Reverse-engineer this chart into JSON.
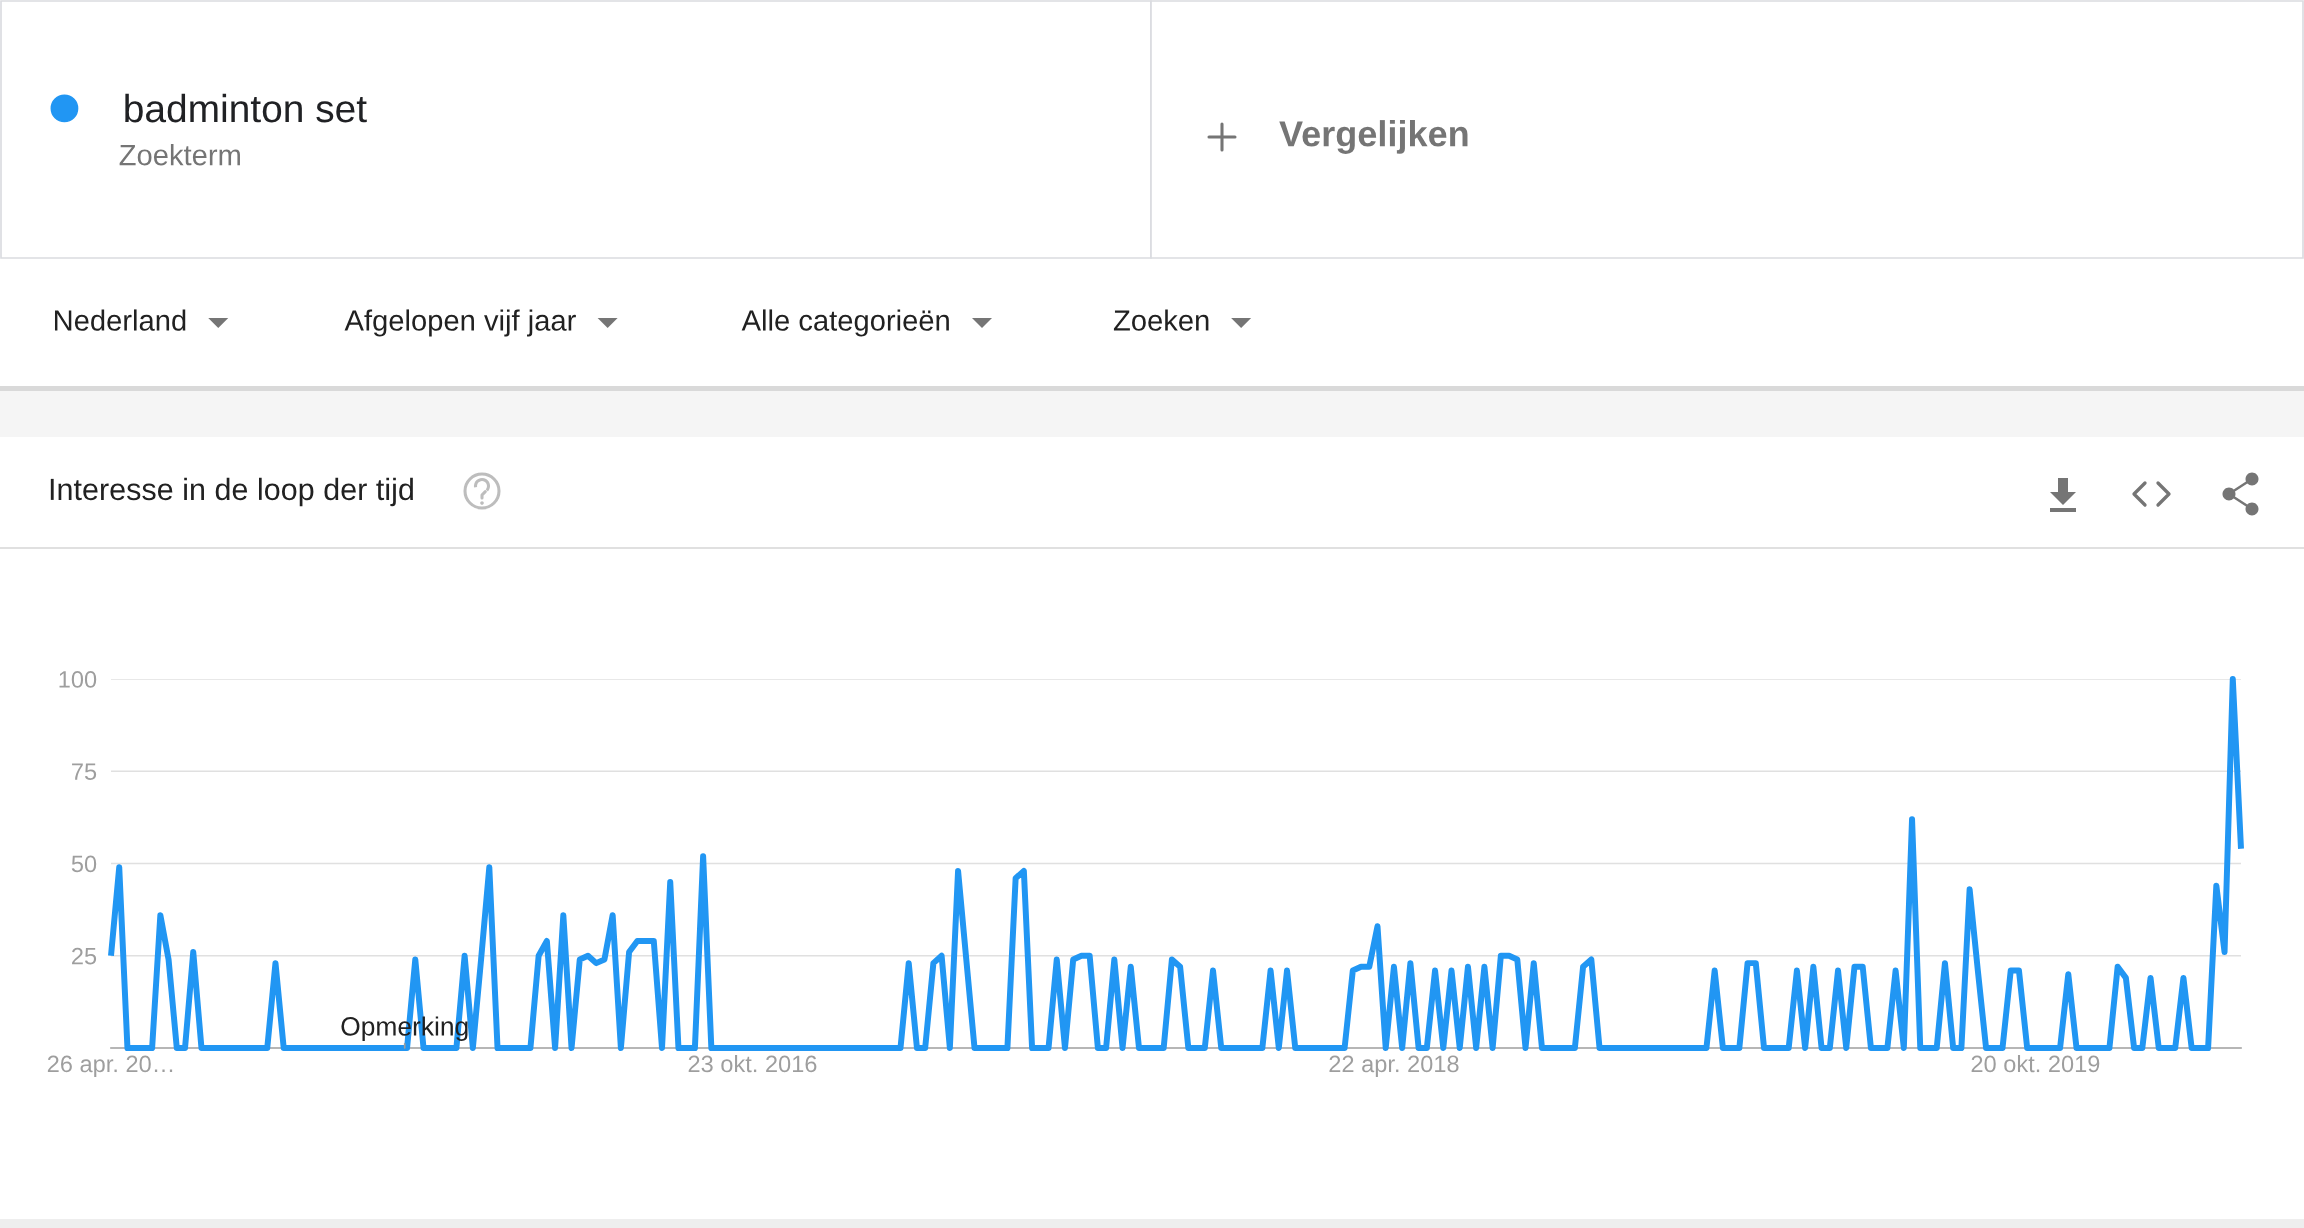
{
  "chart_data": {
    "type": "line",
    "title": "Interesse in de loop der tijd",
    "x": [
      "2015-04-26",
      "2015-05-03",
      "2015-05-10",
      "2015-05-17",
      "2015-05-24",
      "2015-05-31",
      "2015-06-07",
      "2015-06-14",
      "2015-06-21",
      "2015-06-28",
      "2015-07-05",
      "2015-07-12",
      "2015-07-19",
      "2015-07-26",
      "2015-08-02",
      "2015-08-09",
      "2015-08-16",
      "2015-08-23",
      "2015-08-30",
      "2015-09-06",
      "2015-09-13",
      "2015-09-20",
      "2015-09-27",
      "2015-10-04",
      "2015-10-11",
      "2015-10-18",
      "2015-10-25",
      "2015-11-01",
      "2015-11-08",
      "2015-11-15",
      "2015-11-22",
      "2015-11-29",
      "2015-12-06",
      "2015-12-13",
      "2015-12-20",
      "2015-12-27",
      "2016-01-03",
      "2016-01-10",
      "2016-01-17",
      "2016-01-24",
      "2016-01-31",
      "2016-02-07",
      "2016-02-14",
      "2016-02-21",
      "2016-02-28",
      "2016-03-06",
      "2016-03-13",
      "2016-03-20",
      "2016-03-27",
      "2016-04-03",
      "2016-04-10",
      "2016-04-17",
      "2016-04-24",
      "2016-05-01",
      "2016-05-08",
      "2016-05-15",
      "2016-05-22",
      "2016-05-29",
      "2016-06-05",
      "2016-06-12",
      "2016-06-19",
      "2016-06-26",
      "2016-07-03",
      "2016-07-10",
      "2016-07-17",
      "2016-07-24",
      "2016-07-31",
      "2016-08-07",
      "2016-08-14",
      "2016-08-21",
      "2016-08-28",
      "2016-09-04",
      "2016-09-11",
      "2016-09-18",
      "2016-09-25",
      "2016-10-02",
      "2016-10-09",
      "2016-10-16",
      "2016-10-23",
      "2016-10-30",
      "2016-11-06",
      "2016-11-13",
      "2016-11-20",
      "2016-11-27",
      "2016-12-04",
      "2016-12-11",
      "2016-12-18",
      "2016-12-25",
      "2017-01-01",
      "2017-01-08",
      "2017-01-15",
      "2017-01-22",
      "2017-01-29",
      "2017-02-05",
      "2017-02-12",
      "2017-02-19",
      "2017-02-26",
      "2017-03-05",
      "2017-03-12",
      "2017-03-19",
      "2017-03-26",
      "2017-04-02",
      "2017-04-09",
      "2017-04-16",
      "2017-04-23",
      "2017-04-30",
      "2017-05-07",
      "2017-05-14",
      "2017-05-21",
      "2017-05-28",
      "2017-06-04",
      "2017-06-11",
      "2017-06-18",
      "2017-06-25",
      "2017-07-02",
      "2017-07-09",
      "2017-07-16",
      "2017-07-23",
      "2017-07-30",
      "2017-08-06",
      "2017-08-13",
      "2017-08-20",
      "2017-08-27",
      "2017-09-03",
      "2017-09-10",
      "2017-09-17",
      "2017-09-24",
      "2017-10-01",
      "2017-10-08",
      "2017-10-15",
      "2017-10-22",
      "2017-10-29",
      "2017-11-05",
      "2017-11-12",
      "2017-11-19",
      "2017-11-26",
      "2017-12-03",
      "2017-12-10",
      "2017-12-17",
      "2017-12-24",
      "2017-12-31",
      "2018-01-07",
      "2018-01-14",
      "2018-01-21",
      "2018-01-28",
      "2018-02-04",
      "2018-02-11",
      "2018-02-18",
      "2018-02-25",
      "2018-03-04",
      "2018-03-11",
      "2018-03-18",
      "2018-03-25",
      "2018-04-01",
      "2018-04-08",
      "2018-04-15",
      "2018-04-22",
      "2018-04-29",
      "2018-05-06",
      "2018-05-13",
      "2018-05-20",
      "2018-05-27",
      "2018-06-03",
      "2018-06-10",
      "2018-06-17",
      "2018-06-24",
      "2018-07-01",
      "2018-07-08",
      "2018-07-15",
      "2018-07-22",
      "2018-07-29",
      "2018-08-05",
      "2018-08-12",
      "2018-08-19",
      "2018-08-26",
      "2018-09-02",
      "2018-09-09",
      "2018-09-16",
      "2018-09-23",
      "2018-09-30",
      "2018-10-07",
      "2018-10-14",
      "2018-10-21",
      "2018-10-28",
      "2018-11-04",
      "2018-11-11",
      "2018-11-18",
      "2018-11-25",
      "2018-12-02",
      "2018-12-09",
      "2018-12-16",
      "2018-12-23",
      "2018-12-30",
      "2019-01-06",
      "2019-01-13",
      "2019-01-20",
      "2019-01-27",
      "2019-02-03",
      "2019-02-10",
      "2019-02-17",
      "2019-02-24",
      "2019-03-03",
      "2019-03-10",
      "2019-03-17",
      "2019-03-24",
      "2019-03-31",
      "2019-04-07",
      "2019-04-14",
      "2019-04-21",
      "2019-04-28",
      "2019-05-05",
      "2019-05-12",
      "2019-05-19",
      "2019-05-26",
      "2019-06-02",
      "2019-06-09",
      "2019-06-16",
      "2019-06-23",
      "2019-06-30",
      "2019-07-07",
      "2019-07-14",
      "2019-07-21",
      "2019-07-28",
      "2019-08-04",
      "2019-08-11",
      "2019-08-18",
      "2019-08-25",
      "2019-09-01",
      "2019-09-08",
      "2019-09-15",
      "2019-09-22",
      "2019-09-29",
      "2019-10-06",
      "2019-10-13",
      "2019-10-20",
      "2019-10-27",
      "2019-11-03",
      "2019-11-10",
      "2019-11-17",
      "2019-11-24",
      "2019-12-01",
      "2019-12-08",
      "2019-12-15",
      "2019-12-22",
      "2019-12-29",
      "2020-01-05",
      "2020-01-12",
      "2020-01-19",
      "2020-01-26",
      "2020-02-02",
      "2020-02-09",
      "2020-02-16",
      "2020-02-23",
      "2020-03-01",
      "2020-03-08",
      "2020-03-15",
      "2020-03-22",
      "2020-03-29",
      "2020-04-05",
      "2020-04-12"
    ],
    "series": [
      {
        "name": "badminton set",
        "color": "#2196f3",
        "values": [
          25,
          49,
          0,
          0,
          0,
          0,
          36,
          24,
          0,
          0,
          26,
          0,
          0,
          0,
          0,
          0,
          0,
          0,
          0,
          0,
          23,
          0,
          0,
          0,
          0,
          0,
          0,
          0,
          0,
          0,
          0,
          0,
          0,
          0,
          0,
          0,
          0,
          24,
          0,
          0,
          0,
          0,
          0,
          25,
          0,
          24,
          49,
          0,
          0,
          0,
          0,
          0,
          25,
          29,
          0,
          36,
          0,
          24,
          25,
          23,
          24,
          36,
          0,
          26,
          29,
          29,
          29,
          0,
          45,
          0,
          0,
          0,
          52,
          0,
          0,
          0,
          0,
          0,
          0,
          0,
          0,
          0,
          0,
          0,
          0,
          0,
          0,
          0,
          0,
          0,
          0,
          0,
          0,
          0,
          0,
          0,
          0,
          23,
          0,
          0,
          23,
          25,
          0,
          48,
          24,
          0,
          0,
          0,
          0,
          0,
          46,
          48,
          0,
          0,
          0,
          24,
          0,
          24,
          25,
          25,
          0,
          0,
          24,
          0,
          22,
          0,
          0,
          0,
          0,
          24,
          22,
          0,
          0,
          0,
          21,
          0,
          0,
          0,
          0,
          0,
          0,
          21,
          0,
          21,
          0,
          0,
          0,
          0,
          0,
          0,
          0,
          21,
          22,
          22,
          33,
          0,
          22,
          0,
          23,
          0,
          0,
          21,
          0,
          21,
          0,
          22,
          0,
          22,
          0,
          25,
          25,
          24,
          0,
          23,
          0,
          0,
          0,
          0,
          0,
          22,
          24,
          0,
          0,
          0,
          0,
          0,
          0,
          0,
          0,
          0,
          0,
          0,
          0,
          0,
          0,
          21,
          0,
          0,
          0,
          23,
          23,
          0,
          0,
          0,
          0,
          21,
          0,
          22,
          0,
          0,
          21,
          0,
          22,
          22,
          0,
          0,
          0,
          21,
          0,
          62,
          0,
          0,
          0,
          23,
          0,
          0,
          43,
          21,
          0,
          0,
          0,
          21,
          21,
          0,
          0,
          0,
          0,
          0,
          20,
          0,
          0,
          0,
          0,
          0,
          22,
          19,
          0,
          0,
          19,
          0,
          0,
          0,
          19,
          0,
          0,
          0,
          44,
          26,
          100,
          54
        ]
      }
    ],
    "xlim": [
      "2015-04-26",
      "2020-04-12"
    ],
    "xticks": [
      {
        "value": "2015-04-26",
        "label": "26 apr. 20…"
      },
      {
        "value": "2016-10-23",
        "label": "23 okt. 2016"
      },
      {
        "value": "2018-04-22",
        "label": "22 apr. 2018"
      },
      {
        "value": "2019-10-20",
        "label": "20 okt. 2019"
      }
    ],
    "ylim": [
      0,
      100
    ],
    "yticks": [
      25,
      50,
      75,
      100
    ],
    "grid": "y",
    "legend": "top left",
    "line_style": "solid",
    "annotations": [
      "Zoekterm",
      "Vergelijken",
      "Nederland",
      "Afgelopen vijf jaar",
      "Alle categorieën",
      "Zoeken",
      {
        "text": "Opmerking",
        "x": "2016-01-01",
        "y": 0
      }
    ]
  }
}
